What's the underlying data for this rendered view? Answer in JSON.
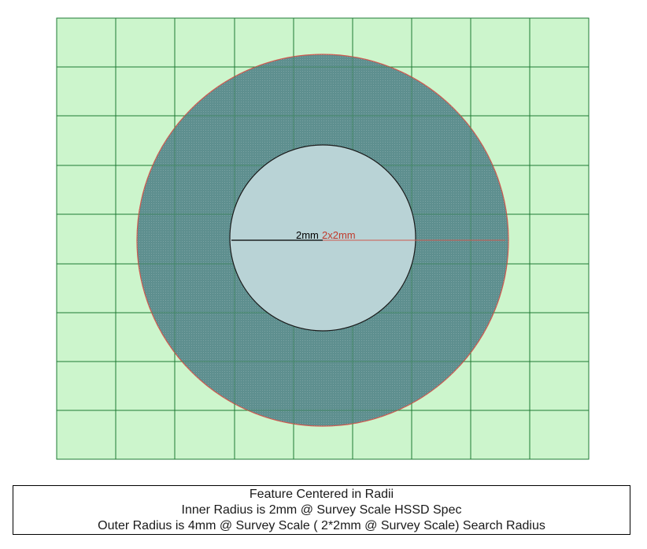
{
  "diagram": {
    "inner_label": "2mm",
    "outer_label": "2x2mm",
    "colors": {
      "grid_fill": "#ccf5cc",
      "grid_line": "#1e7a33",
      "outer_fill": "#5e8f8f",
      "outer_stroke": "#d0584f",
      "inner_fill": "#b9d3d6",
      "inner_stroke": "#1a1a1a",
      "inner_radius_line": "#000000",
      "outer_radius_line": "#d0584f",
      "outer_label_color": "#c0392b"
    }
  },
  "caption": {
    "line1": "Feature Centered in Radii",
    "line2": "Inner Radius is 2mm @ Survey Scale HSSD Spec",
    "line3": "Outer Radius is 4mm @ Survey Scale ( 2*2mm @ Survey Scale) Search Radius"
  }
}
